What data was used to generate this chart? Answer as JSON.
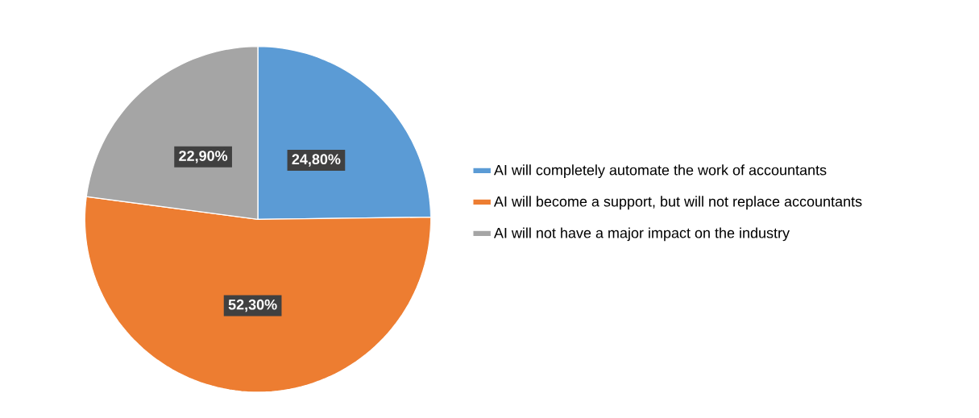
{
  "chart_data": {
    "type": "pie",
    "categories": [
      "AI will completely automate the work of accountants",
      "AI will become a support, but will not replace accountants",
      "AI will not have a major impact on the industry"
    ],
    "values": [
      24.8,
      52.3,
      22.9
    ],
    "colors": [
      "#5b9bd5",
      "#ed7d31",
      "#a5a5a5"
    ],
    "value_labels": [
      "24,80%",
      "52,30%",
      "22,90%"
    ],
    "legend": "right"
  }
}
